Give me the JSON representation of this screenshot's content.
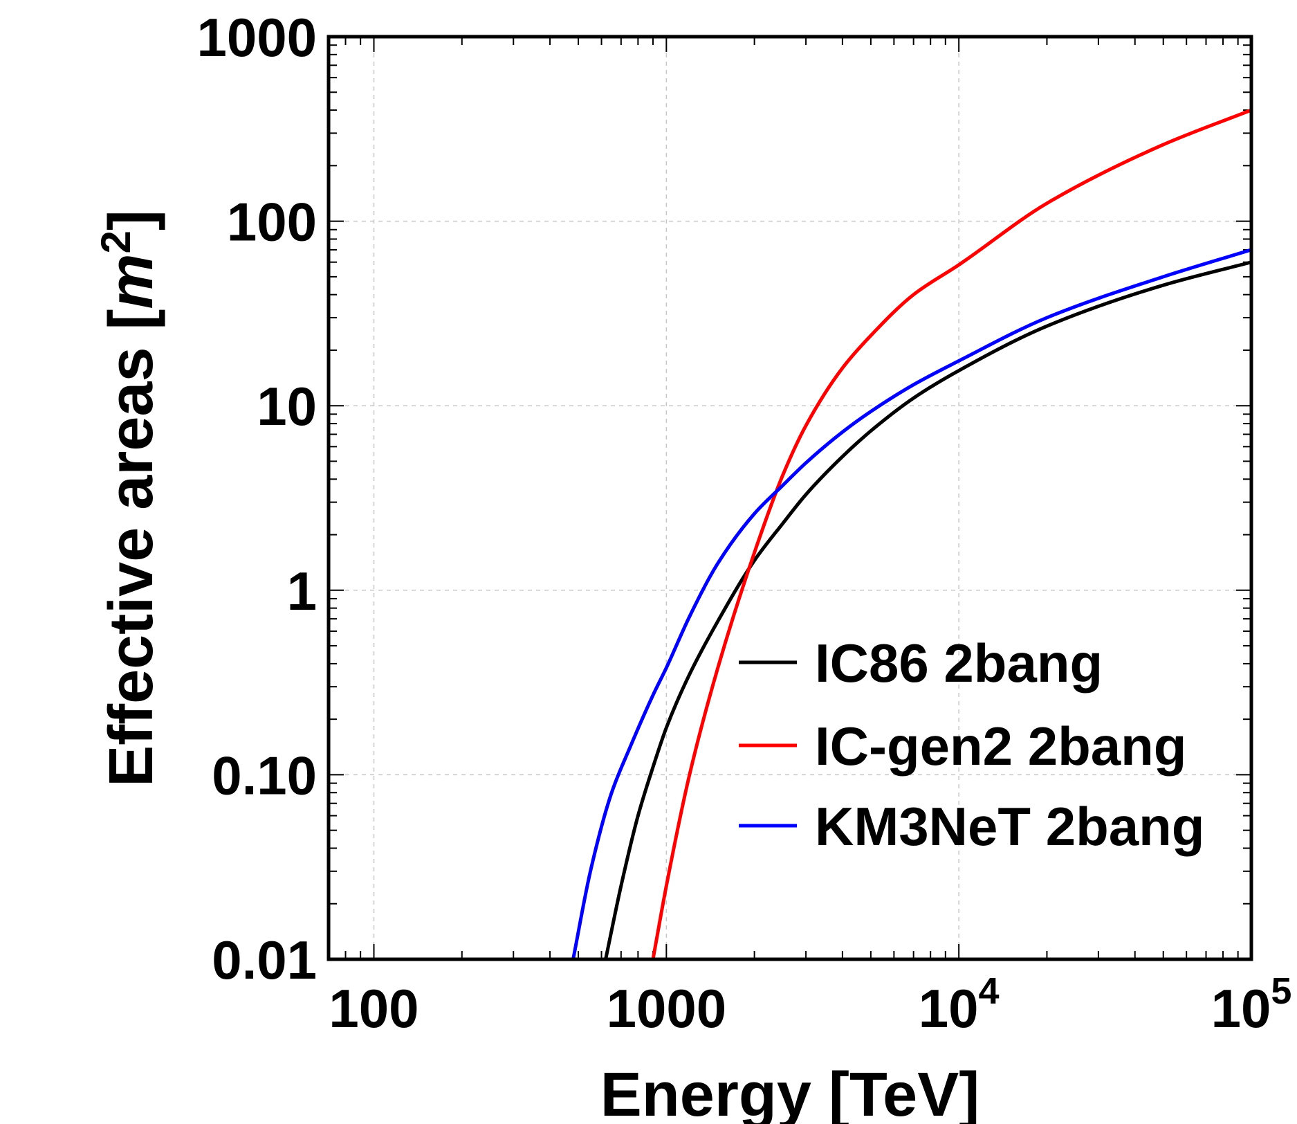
{
  "chart_data": {
    "type": "line",
    "xlabel": "Energy [TeV]",
    "ylabel_main": "Effective areas [",
    "ylabel_unit": "m",
    "ylabel_sup": "2",
    "ylabel_close": "]",
    "x_scale": "log",
    "y_scale": "log",
    "xlim": [
      70,
      100000
    ],
    "ylim": [
      0.01,
      1000
    ],
    "grid": true,
    "legend_position": "bottom-right",
    "x_ticks": [
      {
        "value": 100,
        "label": "100",
        "sup": ""
      },
      {
        "value": 1000,
        "label": "1000",
        "sup": ""
      },
      {
        "value": 10000,
        "label": "10",
        "sup": "4"
      },
      {
        "value": 100000,
        "label": "10",
        "sup": "5"
      }
    ],
    "y_ticks": [
      {
        "value": 0.01,
        "label": "0.01"
      },
      {
        "value": 0.1,
        "label": "0.10"
      },
      {
        "value": 1,
        "label": "1"
      },
      {
        "value": 10,
        "label": "10"
      },
      {
        "value": 100,
        "label": "100"
      },
      {
        "value": 1000,
        "label": "1000"
      }
    ],
    "series": [
      {
        "name": "IC86 2bang",
        "color": "#000000",
        "x": [
          620,
          700,
          800,
          900,
          1000,
          1200,
          1500,
          2000,
          2500,
          3000,
          4000,
          5000,
          7000,
          10000,
          20000,
          50000,
          100000
        ],
        "y": [
          0.01,
          0.025,
          0.06,
          0.11,
          0.18,
          0.35,
          0.68,
          1.45,
          2.3,
          3.3,
          5.3,
          7.3,
          11,
          15.5,
          27,
          45,
          60
        ]
      },
      {
        "name": "IC-gen2 2bang",
        "color": "#ff0000",
        "x": [
          900,
          1000,
          1200,
          1500,
          2000,
          2500,
          3000,
          4000,
          5000,
          7000,
          10000,
          20000,
          50000,
          100000
        ],
        "y": [
          0.01,
          0.025,
          0.1,
          0.38,
          1.6,
          4.2,
          7.8,
          16,
          24,
          40,
          58,
          125,
          260,
          400
        ]
      },
      {
        "name": "KM3NeT 2bang",
        "color": "#0000ff",
        "x": [
          480,
          550,
          650,
          750,
          900,
          1000,
          1200,
          1500,
          2000,
          2500,
          3000,
          4000,
          5000,
          7000,
          10000,
          20000,
          50000,
          100000
        ],
        "y": [
          0.01,
          0.03,
          0.08,
          0.14,
          0.27,
          0.38,
          0.72,
          1.4,
          2.6,
          3.7,
          4.9,
          7.2,
          9.3,
          13,
          17.5,
          30,
          50,
          70
        ]
      }
    ]
  }
}
